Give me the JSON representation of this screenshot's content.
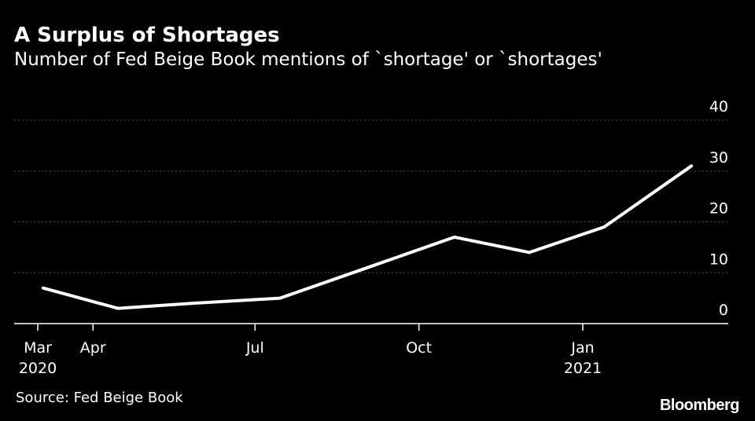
{
  "colors": {
    "background": "#000000",
    "line": "#ffffff",
    "grid": "#555555",
    "text": "#ffffff"
  },
  "footer": {
    "source": "Source: Fed Beige Book",
    "brand": "Bloomberg"
  },
  "chart_data": {
    "type": "line",
    "title": "A Surplus of Shortages",
    "subtitle": "Number of Fed Beige Book mentions of `shortage' or `shortages'",
    "xlabel": "",
    "ylabel": "",
    "ylim": [
      0,
      40
    ],
    "yticks": [
      0,
      10,
      20,
      30,
      40
    ],
    "grid": true,
    "legend": "none",
    "x_ticks": [
      {
        "date": "2020-03",
        "line1": "Mar",
        "line2": "2020"
      },
      {
        "date": "2020-04",
        "line1": "Apr",
        "line2": ""
      },
      {
        "date": "2020-07",
        "line1": "Jul",
        "line2": ""
      },
      {
        "date": "2020-10",
        "line1": "Oct",
        "line2": ""
      },
      {
        "date": "2021-01",
        "line1": "Jan",
        "line2": "2021"
      }
    ],
    "series": [
      {
        "x": [
          "2020-03-04",
          "2020-04-15",
          "2020-05-27",
          "2020-07-15",
          "2020-09-02",
          "2020-10-21",
          "2020-12-02",
          "2021-01-13",
          "2021-03-03"
        ],
        "values": [
          7,
          3,
          4,
          5,
          11,
          17,
          14,
          19,
          31
        ]
      }
    ]
  }
}
